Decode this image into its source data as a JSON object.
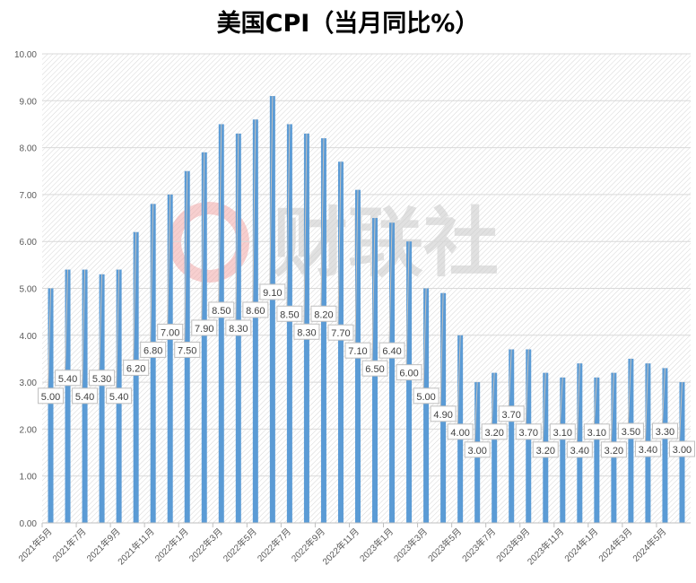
{
  "chart_data": {
    "type": "bar",
    "title": "美国CPI（当月同比%）",
    "xlabel": "",
    "ylabel": "",
    "ylim": [
      0,
      10
    ],
    "yticks": [
      "0.00",
      "1.00",
      "2.00",
      "3.00",
      "4.00",
      "5.00",
      "6.00",
      "7.00",
      "8.00",
      "9.00",
      "10.00"
    ],
    "grid": true,
    "watermark": "财联社",
    "color": "#5B9BD5",
    "categories": [
      "2021年5月",
      "2021年6月",
      "2021年7月",
      "2021年8月",
      "2021年9月",
      "2021年10月",
      "2021年11月",
      "2021年12月",
      "2022年1月",
      "2022年2月",
      "2022年3月",
      "2022年4月",
      "2022年5月",
      "2022年6月",
      "2022年7月",
      "2022年8月",
      "2022年9月",
      "2022年10月",
      "2022年11月",
      "2022年12月",
      "2023年1月",
      "2023年2月",
      "2023年3月",
      "2023年4月",
      "2023年5月",
      "2023年6月",
      "2023年7月",
      "2023年8月",
      "2023年9月",
      "2023年10月",
      "2023年11月",
      "2023年12月",
      "2024年1月",
      "2024年2月",
      "2024年3月",
      "2024年4月",
      "2024年5月",
      "2024年6月"
    ],
    "xtick_labels": [
      "2021年5月",
      "2021年7月",
      "2021年9月",
      "2021年11月",
      "2022年1月",
      "2022年3月",
      "2022年5月",
      "2022年7月",
      "2022年9月",
      "2022年11月",
      "2023年1月",
      "2023年3月",
      "2023年5月",
      "2023年7月",
      "2023年9月",
      "2023年11月",
      "2024年1月",
      "2024年3月",
      "2024年5月"
    ],
    "values": [
      5.0,
      5.4,
      5.4,
      5.3,
      5.4,
      6.2,
      6.8,
      7.0,
      7.5,
      7.9,
      8.5,
      8.3,
      8.6,
      9.1,
      8.5,
      8.3,
      8.2,
      7.7,
      7.1,
      6.5,
      6.4,
      6.0,
      5.0,
      4.9,
      4.0,
      3.0,
      3.2,
      3.7,
      3.7,
      3.2,
      3.1,
      3.4,
      3.1,
      3.2,
      3.5,
      3.4,
      3.3,
      3.0
    ]
  }
}
